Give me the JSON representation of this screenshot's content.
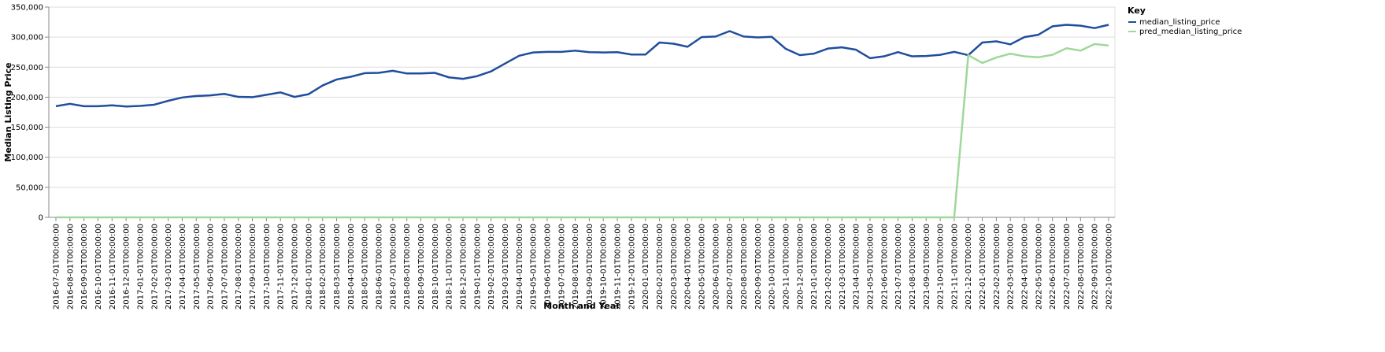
{
  "chart_data": {
    "type": "line",
    "xlabel": "Month and Year",
    "ylabel": "Median Listing Price",
    "ylim": [
      0,
      350000
    ],
    "yticks": [
      "0",
      "50,000",
      "100,000",
      "150,000",
      "200,000",
      "250,000",
      "300,000",
      "350,000"
    ],
    "ytick_values": [
      0,
      50000,
      100000,
      150000,
      200000,
      250000,
      300000,
      350000
    ],
    "grid": true,
    "legend": {
      "title": "Key",
      "placement": "top-right"
    },
    "x": [
      "2016-07-01T00:00:00",
      "2016-08-01T00:00:00",
      "2016-09-01T00:00:00",
      "2016-10-01T00:00:00",
      "2016-11-01T00:00:00",
      "2016-12-01T00:00:00",
      "2017-01-01T00:00:00",
      "2017-02-01T00:00:00",
      "2017-03-01T00:00:00",
      "2017-04-01T00:00:00",
      "2017-05-01T00:00:00",
      "2017-06-01T00:00:00",
      "2017-07-01T00:00:00",
      "2017-08-01T00:00:00",
      "2017-09-01T00:00:00",
      "2017-10-01T00:00:00",
      "2017-11-01T00:00:00",
      "2017-12-01T00:00:00",
      "2018-01-01T00:00:00",
      "2018-02-01T00:00:00",
      "2018-03-01T00:00:00",
      "2018-04-01T00:00:00",
      "2018-05-01T00:00:00",
      "2018-06-01T00:00:00",
      "2018-07-01T00:00:00",
      "2018-08-01T00:00:00",
      "2018-09-01T00:00:00",
      "2018-10-01T00:00:00",
      "2018-11-01T00:00:00",
      "2018-12-01T00:00:00",
      "2019-01-01T00:00:00",
      "2019-02-01T00:00:00",
      "2019-03-01T00:00:00",
      "2019-04-01T00:00:00",
      "2019-05-01T00:00:00",
      "2019-06-01T00:00:00",
      "2019-07-01T00:00:00",
      "2019-08-01T00:00:00",
      "2019-09-01T00:00:00",
      "2019-10-01T00:00:00",
      "2019-11-01T00:00:00",
      "2019-12-01T00:00:00",
      "2020-01-01T00:00:00",
      "2020-02-01T00:00:00",
      "2020-03-01T00:00:00",
      "2020-04-01T00:00:00",
      "2020-05-01T00:00:00",
      "2020-06-01T00:00:00",
      "2020-07-01T00:00:00",
      "2020-08-01T00:00:00",
      "2020-09-01T00:00:00",
      "2020-10-01T00:00:00",
      "2020-11-01T00:00:00",
      "2020-12-01T00:00:00",
      "2021-01-01T00:00:00",
      "2021-02-01T00:00:00",
      "2021-03-01T00:00:00",
      "2021-04-01T00:00:00",
      "2021-05-01T00:00:00",
      "2021-06-01T00:00:00",
      "2021-07-01T00:00:00",
      "2021-08-01T00:00:00",
      "2021-09-01T00:00:00",
      "2021-10-01T00:00:00",
      "2021-11-01T00:00:00",
      "2021-12-01T00:00:00",
      "2022-01-01T00:00:00",
      "2022-02-01T00:00:00",
      "2022-03-01T00:00:00",
      "2022-04-01T00:00:00",
      "2022-05-01T00:00:00",
      "2022-06-01T00:00:00",
      "2022-07-01T00:00:00",
      "2022-08-01T00:00:00",
      "2022-09-01T00:00:00",
      "2022-10-01T00:00:00"
    ],
    "series": [
      {
        "name": "median_listing_price",
        "color": "#1f4e9c",
        "values": [
          185000,
          189000,
          185000,
          185000,
          186500,
          184500,
          185500,
          187500,
          194000,
          199500,
          202000,
          203000,
          205500,
          200500,
          200000,
          204000,
          208000,
          200500,
          205000,
          219500,
          229500,
          234000,
          240000,
          240500,
          244000,
          239500,
          239500,
          240500,
          233000,
          230500,
          235000,
          243000,
          256000,
          269000,
          274500,
          275500,
          275500,
          277500,
          275000,
          274500,
          275000,
          271000,
          271000,
          291000,
          289000,
          284000,
          300000,
          301000,
          310000,
          301000,
          299500,
          300500,
          280500,
          270000,
          272500,
          281000,
          283000,
          279000,
          265000,
          268000,
          275000,
          268000,
          268500,
          270500,
          275500,
          270000,
          291000,
          293000,
          288000,
          300000,
          304000,
          318000,
          320500,
          319000,
          315000,
          320500
        ]
      },
      {
        "name": "pred_median_listing_price",
        "color": "#9fd89a",
        "values": [
          0,
          0,
          0,
          0,
          0,
          0,
          0,
          0,
          0,
          0,
          0,
          0,
          0,
          0,
          0,
          0,
          0,
          0,
          0,
          0,
          0,
          0,
          0,
          0,
          0,
          0,
          0,
          0,
          0,
          0,
          0,
          0,
          0,
          0,
          0,
          0,
          0,
          0,
          0,
          0,
          0,
          0,
          0,
          0,
          0,
          0,
          0,
          0,
          0,
          0,
          0,
          0,
          0,
          0,
          0,
          0,
          0,
          0,
          0,
          0,
          0,
          0,
          0,
          0,
          0,
          270000,
          257000,
          266000,
          272500,
          268000,
          266500,
          270500,
          281500,
          277500,
          288500,
          286000
        ]
      }
    ]
  }
}
